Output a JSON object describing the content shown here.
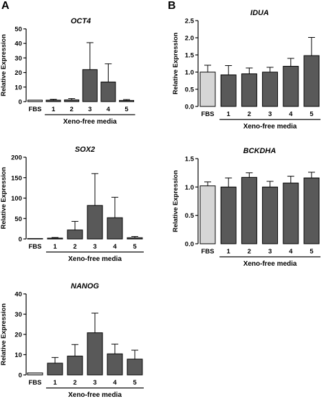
{
  "panels": [
    {
      "letter": "A"
    },
    {
      "letter": "B"
    }
  ],
  "style": {
    "bar_fill": "#595959",
    "ref_fill": "#d6d6d6",
    "stroke": "#000000"
  },
  "chart_data": [
    {
      "type": "bar",
      "panel": "A",
      "title": "OCT4",
      "ylabel": "Relative Expression",
      "xlabel": "Xeno-free media",
      "ref_category": "FBS",
      "categories": [
        "FBS",
        "1",
        "2",
        "3",
        "4",
        "5"
      ],
      "values": [
        1,
        1,
        1.2,
        22,
        13.5,
        0.8
      ],
      "errors": [
        0,
        0.6,
        0.9,
        18.5,
        12.5,
        0.6
      ],
      "ylim": [
        0,
        50
      ],
      "yticks": [
        "0",
        "10",
        "20",
        "30",
        "40",
        "50"
      ]
    },
    {
      "type": "bar",
      "panel": "A",
      "title": "SOX2",
      "ylabel": "Relative Expression",
      "xlabel": "Xeno-free media",
      "ref_category": "FBS",
      "categories": [
        "FBS",
        "1",
        "2",
        "3",
        "4",
        "5"
      ],
      "values": [
        1,
        2,
        22,
        82,
        52,
        3
      ],
      "errors": [
        0,
        1.5,
        21,
        78,
        50,
        3
      ],
      "ylim": [
        0,
        200
      ],
      "yticks": [
        "0",
        "50",
        "100",
        "150",
        "200"
      ]
    },
    {
      "type": "bar",
      "panel": "A",
      "title": "NANOG",
      "ylabel": "Relative Expression",
      "xlabel": "Xeno-free media",
      "ref_category": "FBS",
      "categories": [
        "FBS",
        "1",
        "2",
        "3",
        "4",
        "5"
      ],
      "values": [
        1,
        5.8,
        9.3,
        20.8,
        10.4,
        7.8
      ],
      "errors": [
        0,
        2.8,
        5.7,
        9.7,
        4.8,
        4.4
      ],
      "ylim": [
        0,
        40
      ],
      "yticks": [
        "0",
        "10",
        "20",
        "30",
        "40"
      ]
    },
    {
      "type": "bar",
      "panel": "B",
      "title": "IDUA",
      "ylabel": "Relative Expression",
      "xlabel": "Xeno-free media",
      "ref_category": "FBS",
      "categories": [
        "FBS",
        "1",
        "2",
        "3",
        "4",
        "5"
      ],
      "values": [
        1.0,
        0.92,
        0.95,
        1.0,
        1.17,
        1.48
      ],
      "errors": [
        0.2,
        0.27,
        0.17,
        0.14,
        0.23,
        0.53
      ],
      "ylim": [
        0,
        2.5
      ],
      "yticks": [
        "0.0",
        "0.5",
        "1.0",
        "1.5",
        "2.0",
        "2.5"
      ]
    },
    {
      "type": "bar",
      "panel": "B",
      "title": "BCKDHA",
      "ylabel": "Relative Expression",
      "xlabel": "Xeno-free media",
      "ref_category": "FBS",
      "categories": [
        "FBS",
        "1",
        "2",
        "3",
        "4",
        "5"
      ],
      "values": [
        1.02,
        1.0,
        1.17,
        1.0,
        1.07,
        1.16
      ],
      "errors": [
        0.07,
        0.16,
        0.08,
        0.1,
        0.12,
        0.1
      ],
      "ylim": [
        0,
        1.5
      ],
      "yticks": [
        "0.0",
        "0.5",
        "1.0",
        "1.5"
      ]
    }
  ]
}
